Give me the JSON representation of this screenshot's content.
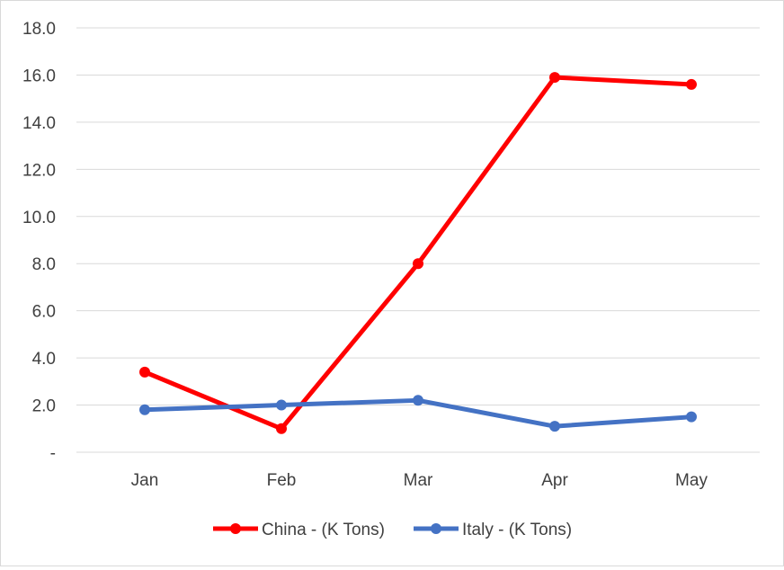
{
  "chart_data": {
    "type": "line",
    "categories": [
      "Jan",
      "Feb",
      "Mar",
      "Apr",
      "May"
    ],
    "series": [
      {
        "name": "China - (K Tons)",
        "values": [
          3.4,
          1.0,
          8.0,
          15.9,
          15.6
        ],
        "color": "#ff0000"
      },
      {
        "name": "Italy - (K Tons)",
        "values": [
          1.8,
          2.0,
          2.2,
          1.1,
          1.5
        ],
        "color": "#4472c4"
      }
    ],
    "ylim": [
      0,
      18
    ],
    "yticks": [
      0,
      2,
      4,
      6,
      8,
      10,
      12,
      14,
      16,
      18
    ],
    "ytick_labels": [
      "-",
      "2.0",
      "4.0",
      "6.0",
      "8.0",
      "10.0",
      "12.0",
      "14.0",
      "16.0",
      "18.0"
    ],
    "grid": true,
    "legend": "bottom",
    "title": "",
    "xlabel": "",
    "ylabel": ""
  }
}
